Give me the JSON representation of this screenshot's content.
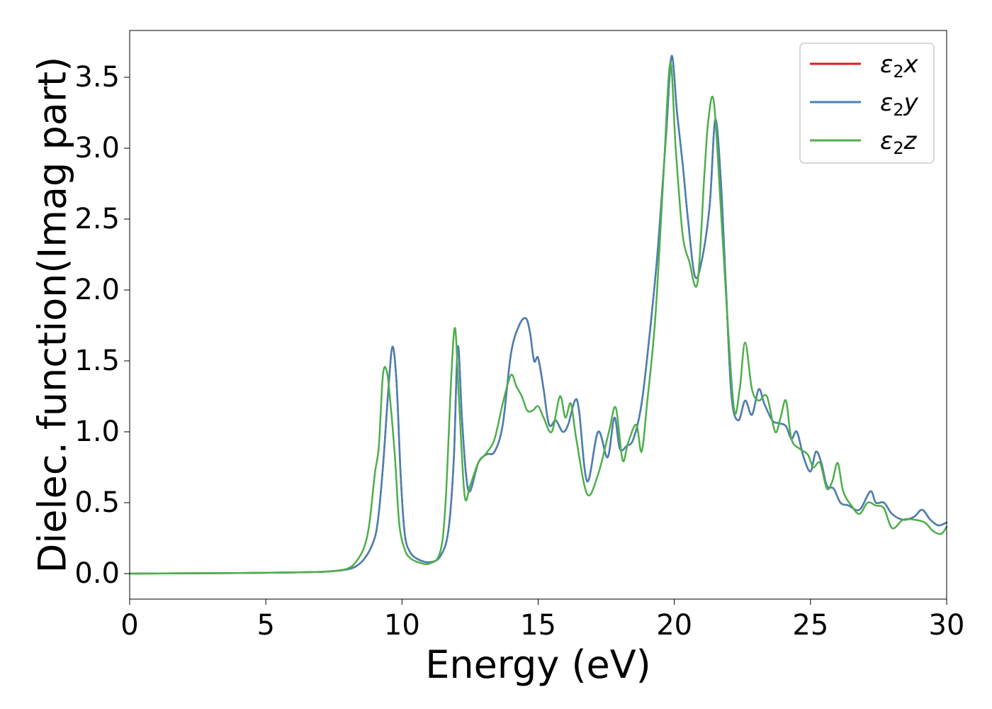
{
  "chart_data": {
    "type": "line",
    "xlabel": "Energy (eV)",
    "ylabel": "Dielec. function(Imag part)",
    "xlim": [
      0,
      30
    ],
    "ylim": [
      -0.18,
      3.83
    ],
    "xticks": [
      0,
      5,
      10,
      15,
      20,
      25,
      30
    ],
    "yticks": [
      "0.0",
      "0.5",
      "1.0",
      "1.5",
      "2.0",
      "2.5",
      "3.0",
      "3.5"
    ],
    "grid": false,
    "legend_position": "top-right",
    "series": [
      {
        "name": "ε2x",
        "legend_main": "ε",
        "legend_sub": "2",
        "legend_tail": "x",
        "color": "#e41a1c",
        "x": [
          0,
          2,
          4,
          6,
          7,
          7.5,
          8,
          8.3,
          8.6,
          8.9,
          9.1,
          9.3,
          9.5,
          9.65,
          9.8,
          9.95,
          10.1,
          10.3,
          10.6,
          11.0,
          11.4,
          11.7,
          11.9,
          12.05,
          12.2,
          12.35,
          12.5,
          12.8,
          13.1,
          13.4,
          13.7,
          14.0,
          14.3,
          14.55,
          14.7,
          14.85,
          15.0,
          15.2,
          15.4,
          15.65,
          15.9,
          16.1,
          16.35,
          16.5,
          16.8,
          17.2,
          17.55,
          17.8,
          18.0,
          18.25,
          18.5,
          18.8,
          19.1,
          19.4,
          19.7,
          19.9,
          20.1,
          20.3,
          20.5,
          20.75,
          21.0,
          21.3,
          21.5,
          21.7,
          21.9,
          22.1,
          22.35,
          22.6,
          22.85,
          23.1,
          23.3,
          23.6,
          23.85,
          24.1,
          24.3,
          24.5,
          24.75,
          25.0,
          25.2,
          25.4,
          25.6,
          25.85,
          26.1,
          26.4,
          26.8,
          27.2,
          27.4,
          27.7,
          28.0,
          28.4,
          28.8,
          29.1,
          29.4,
          29.7,
          30.0
        ],
        "y": [
          0.0,
          0.002,
          0.004,
          0.008,
          0.012,
          0.018,
          0.03,
          0.05,
          0.1,
          0.2,
          0.35,
          0.75,
          1.3,
          1.6,
          1.35,
          0.7,
          0.28,
          0.15,
          0.1,
          0.08,
          0.12,
          0.3,
          0.8,
          1.6,
          1.1,
          0.7,
          0.58,
          0.78,
          0.84,
          0.86,
          1.05,
          1.55,
          1.75,
          1.8,
          1.7,
          1.5,
          1.52,
          1.3,
          1.05,
          1.08,
          1.0,
          1.05,
          1.22,
          1.15,
          0.65,
          1.0,
          0.82,
          1.1,
          0.88,
          0.9,
          0.95,
          1.2,
          1.7,
          2.3,
          3.1,
          3.65,
          3.25,
          2.9,
          2.5,
          2.1,
          2.2,
          2.6,
          3.2,
          2.8,
          2.0,
          1.25,
          1.08,
          1.22,
          1.12,
          1.3,
          1.2,
          1.08,
          1.06,
          1.04,
          0.95,
          1.0,
          0.82,
          0.72,
          0.86,
          0.78,
          0.62,
          0.6,
          0.5,
          0.48,
          0.45,
          0.58,
          0.5,
          0.5,
          0.42,
          0.38,
          0.4,
          0.45,
          0.38,
          0.34,
          0.36
        ]
      },
      {
        "name": "ε2y",
        "legend_main": "ε",
        "legend_sub": "2",
        "legend_tail": "y",
        "color": "#4682b4",
        "x": [
          0,
          2,
          4,
          6,
          7,
          7.5,
          8,
          8.3,
          8.6,
          8.9,
          9.1,
          9.3,
          9.5,
          9.65,
          9.8,
          9.95,
          10.1,
          10.3,
          10.6,
          11.0,
          11.4,
          11.7,
          11.9,
          12.05,
          12.2,
          12.35,
          12.5,
          12.8,
          13.1,
          13.4,
          13.7,
          14.0,
          14.3,
          14.55,
          14.7,
          14.85,
          15.0,
          15.2,
          15.4,
          15.65,
          15.9,
          16.1,
          16.35,
          16.5,
          16.8,
          17.2,
          17.55,
          17.8,
          18.0,
          18.25,
          18.5,
          18.8,
          19.1,
          19.4,
          19.7,
          19.9,
          20.1,
          20.3,
          20.5,
          20.75,
          21.0,
          21.3,
          21.5,
          21.7,
          21.9,
          22.1,
          22.35,
          22.6,
          22.85,
          23.1,
          23.3,
          23.6,
          23.85,
          24.1,
          24.3,
          24.5,
          24.75,
          25.0,
          25.2,
          25.4,
          25.6,
          25.85,
          26.1,
          26.4,
          26.8,
          27.2,
          27.4,
          27.7,
          28.0,
          28.4,
          28.8,
          29.1,
          29.4,
          29.7,
          30.0
        ],
        "y": [
          0.0,
          0.002,
          0.004,
          0.008,
          0.012,
          0.018,
          0.03,
          0.05,
          0.1,
          0.2,
          0.35,
          0.75,
          1.3,
          1.6,
          1.35,
          0.7,
          0.28,
          0.15,
          0.1,
          0.08,
          0.12,
          0.3,
          0.8,
          1.6,
          1.1,
          0.7,
          0.58,
          0.78,
          0.84,
          0.86,
          1.05,
          1.55,
          1.75,
          1.8,
          1.7,
          1.5,
          1.52,
          1.3,
          1.05,
          1.08,
          1.0,
          1.05,
          1.22,
          1.15,
          0.65,
          1.0,
          0.82,
          1.1,
          0.88,
          0.9,
          0.95,
          1.2,
          1.7,
          2.3,
          3.1,
          3.65,
          3.25,
          2.9,
          2.5,
          2.1,
          2.2,
          2.6,
          3.2,
          2.8,
          2.0,
          1.25,
          1.08,
          1.22,
          1.12,
          1.3,
          1.2,
          1.08,
          1.06,
          1.04,
          0.95,
          1.0,
          0.82,
          0.72,
          0.86,
          0.78,
          0.62,
          0.6,
          0.5,
          0.48,
          0.45,
          0.58,
          0.5,
          0.5,
          0.42,
          0.38,
          0.4,
          0.45,
          0.38,
          0.34,
          0.36
        ]
      },
      {
        "name": "ε2z",
        "legend_main": "ε",
        "legend_sub": "2",
        "legend_tail": "z",
        "color": "#4daf4a",
        "x": [
          0,
          2,
          4,
          6,
          7,
          7.5,
          8,
          8.3,
          8.6,
          8.8,
          9.0,
          9.15,
          9.3,
          9.45,
          9.6,
          9.75,
          9.9,
          10.1,
          10.3,
          10.6,
          11.0,
          11.4,
          11.6,
          11.8,
          11.95,
          12.1,
          12.3,
          12.5,
          12.8,
          13.1,
          13.4,
          13.7,
          14.0,
          14.2,
          14.4,
          14.6,
          14.8,
          15.0,
          15.2,
          15.5,
          15.8,
          16.0,
          16.2,
          16.4,
          16.8,
          17.2,
          17.6,
          17.85,
          18.1,
          18.3,
          18.6,
          18.8,
          19.0,
          19.3,
          19.6,
          19.85,
          20.05,
          20.3,
          20.55,
          20.85,
          21.1,
          21.25,
          21.45,
          21.7,
          21.95,
          22.2,
          22.4,
          22.6,
          22.85,
          23.1,
          23.4,
          23.7,
          23.9,
          24.1,
          24.3,
          24.6,
          24.9,
          25.1,
          25.35,
          25.6,
          25.8,
          26.0,
          26.2,
          26.5,
          26.8,
          27.1,
          27.4,
          27.7,
          28.0,
          28.4,
          28.8,
          29.2,
          29.5,
          29.8,
          30.0
        ],
        "y": [
          0.0,
          0.002,
          0.004,
          0.008,
          0.012,
          0.018,
          0.035,
          0.08,
          0.18,
          0.35,
          0.7,
          0.9,
          1.4,
          1.42,
          1.15,
          0.8,
          0.35,
          0.17,
          0.11,
          0.08,
          0.07,
          0.15,
          0.5,
          1.35,
          1.73,
          1.2,
          0.55,
          0.62,
          0.78,
          0.85,
          0.95,
          1.2,
          1.4,
          1.32,
          1.25,
          1.15,
          1.15,
          1.18,
          1.1,
          1.0,
          1.25,
          1.1,
          1.2,
          0.95,
          0.56,
          0.7,
          1.0,
          1.17,
          0.8,
          0.92,
          1.05,
          0.86,
          1.2,
          1.8,
          2.8,
          3.6,
          3.0,
          2.4,
          2.2,
          2.05,
          2.8,
          3.2,
          3.33,
          2.6,
          1.8,
          1.15,
          1.3,
          1.63,
          1.3,
          1.22,
          1.25,
          1.0,
          1.1,
          1.22,
          0.95,
          0.88,
          0.84,
          0.75,
          0.78,
          0.6,
          0.65,
          0.78,
          0.58,
          0.48,
          0.42,
          0.5,
          0.48,
          0.46,
          0.32,
          0.38,
          0.38,
          0.36,
          0.3,
          0.28,
          0.33
        ]
      }
    ]
  }
}
